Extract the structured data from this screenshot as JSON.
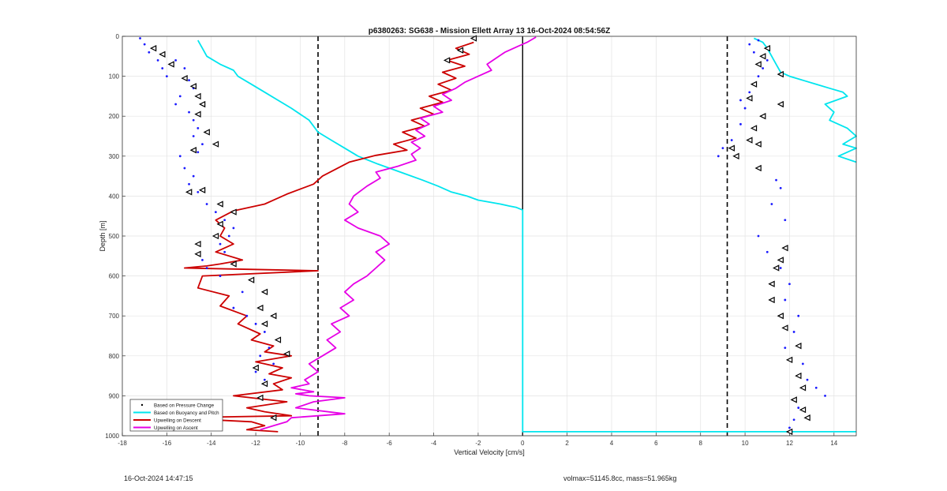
{
  "footer": {
    "timestamp": "16-Oct-2024 14:47:15",
    "volmax_mass": "volmax=51145.8cc, mass=51.965kg"
  },
  "chart_data": {
    "type": "line",
    "title": "p6380263: SG638 - Mission Ellett Array 13 16-Oct-2024 08:54:56Z",
    "xlabel": "Vertical Velocity [cm/s]",
    "ylabel": "Depth [m]",
    "xlim": [
      -18,
      15
    ],
    "ylim": [
      0,
      1000
    ],
    "y_reversed": true,
    "grid": true,
    "legend_position": "bottom-left",
    "xticks": [
      -18,
      -16,
      -14,
      -12,
      -10,
      -8,
      -6,
      -4,
      -2,
      0,
      2,
      4,
      6,
      8,
      10,
      12,
      14
    ],
    "yticks": [
      0,
      100,
      200,
      300,
      400,
      500,
      600,
      700,
      800,
      900,
      1000
    ],
    "reference_lines": {
      "dashed_x": [
        -9.2,
        9.2
      ],
      "solid_x": [
        0
      ]
    },
    "legend": [
      {
        "name": "Based on Pressure Change",
        "color": "#000000",
        "style": "dot"
      },
      {
        "name": "Based on Buoyancy and Pitch",
        "color": "#00e5ee",
        "style": "line"
      },
      {
        "name": "Upwelling on Descent",
        "color": "#cc0000",
        "style": "line"
      },
      {
        "name": "Upwelling on Ascent",
        "color": "#e600e6",
        "style": "line"
      }
    ],
    "series": [
      {
        "name": "Based on Buoyancy and Pitch",
        "color": "#00e5ee",
        "style": "line",
        "x": [
          -14.6,
          -14.4,
          -14.2,
          -13.6,
          -13.0,
          -12.8,
          -12.2,
          -11.6,
          -11.0,
          -10.4,
          -9.6,
          -9.2,
          -8.6,
          -8.0,
          -7.4,
          -6.5,
          -5.5,
          -4.5,
          -3.8,
          -3.2,
          -2.5,
          -2.0,
          -1.5,
          -1.0,
          -0.6,
          -0.3,
          0,
          0,
          0,
          0,
          0,
          15
        ],
        "y": [
          10,
          30,
          50,
          70,
          85,
          100,
          120,
          140,
          160,
          180,
          210,
          240,
          260,
          280,
          300,
          320,
          340,
          360,
          375,
          390,
          400,
          410,
          415,
          420,
          425,
          428,
          435,
          600,
          800,
          950,
          990,
          990
        ]
      },
      {
        "name": "Based on Buoyancy and Pitch (ascent)",
        "color": "#00e5ee",
        "style": "line",
        "x": [
          10.4,
          10.8,
          11.0,
          11.2,
          11.4,
          11.6,
          12.0,
          12.6,
          13.2,
          13.8,
          14.4,
          14.6,
          13.6,
          14.0,
          13.8,
          14.6,
          15.0,
          14.4,
          15.0,
          14.2,
          15.0
        ],
        "y": [
          5,
          15,
          30,
          50,
          70,
          90,
          100,
          110,
          120,
          130,
          140,
          150,
          170,
          190,
          210,
          230,
          250,
          270,
          280,
          300,
          315
        ]
      },
      {
        "name": "Upwelling on Descent",
        "color": "#cc0000",
        "style": "line",
        "x": [
          -2.2,
          -3.0,
          -2.4,
          -3.4,
          -2.6,
          -3.6,
          -3.0,
          -3.8,
          -3.2,
          -4.2,
          -3.6,
          -4.6,
          -4.0,
          -5.0,
          -4.4,
          -5.4,
          -4.8,
          -5.8,
          -5.2,
          -6.6,
          -7.8,
          -9.0,
          -9.4,
          -10.6,
          -11.6,
          -13.0,
          -13.8,
          -13.4,
          -13.6,
          -13.0,
          -13.8,
          -12.6,
          -13.6,
          -14.2,
          -15.2,
          -9.2,
          -14.4,
          -14.6,
          -13.2,
          -13.6,
          -12.4,
          -12.8,
          -11.8,
          -12.2,
          -11.2,
          -11.6,
          -10.4,
          -12.0,
          -10.8,
          -11.4,
          -10.4,
          -11.2,
          -10.8,
          -13.0,
          -10.6,
          -12.4,
          -11.6,
          -10.4,
          -15.8,
          -12.2,
          -11.6,
          -12.4,
          -11.0
        ],
        "y": [
          15,
          30,
          45,
          60,
          75,
          90,
          105,
          120,
          135,
          150,
          165,
          180,
          195,
          210,
          225,
          240,
          255,
          270,
          285,
          298,
          315,
          350,
          370,
          395,
          420,
          437,
          460,
          480,
          500,
          520,
          540,
          560,
          570,
          575,
          580,
          587,
          600,
          630,
          650,
          675,
          700,
          720,
          745,
          760,
          775,
          790,
          800,
          815,
          830,
          845,
          855,
          870,
          885,
          900,
          915,
          930,
          940,
          950,
          955,
          965,
          975,
          985,
          990
        ]
      },
      {
        "name": "Upwelling on Ascent",
        "color": "#e600e6",
        "style": "line",
        "x": [
          0.6,
          0.2,
          -0.2,
          -0.8,
          -1.2,
          -1.6,
          -1.4,
          -2.0,
          -2.6,
          -3.0,
          -3.6,
          -3.2,
          -4.0,
          -3.6,
          -4.6,
          -4.2,
          -4.8,
          -4.4,
          -5.0,
          -4.6,
          -5.0,
          -4.8,
          -5.6,
          -6.6,
          -6.4,
          -7.0,
          -7.6,
          -7.8,
          -7.4,
          -8.0,
          -7.4,
          -6.4,
          -6.0,
          -6.6,
          -6.2,
          -6.6,
          -7.0,
          -7.6,
          -8.0,
          -7.6,
          -8.2,
          -7.8,
          -8.6,
          -8.2,
          -8.8,
          -8.4,
          -9.0,
          -9.6,
          -9.2,
          -9.8,
          -9.6,
          -10.4,
          -9.4,
          -10.2,
          -9.6,
          -8.0,
          -9.4,
          -10.2,
          -8.0,
          -10.4,
          -10.6,
          -11.2,
          -11.8
        ],
        "y": [
          2,
          15,
          25,
          40,
          55,
          70,
          85,
          100,
          115,
          130,
          145,
          160,
          175,
          190,
          205,
          220,
          235,
          250,
          265,
          280,
          295,
          310,
          325,
          340,
          355,
          375,
          400,
          420,
          440,
          460,
          480,
          500,
          520,
          540,
          560,
          580,
          600,
          620,
          640,
          660,
          680,
          700,
          720,
          740,
          760,
          780,
          800,
          820,
          840,
          860,
          870,
          880,
          890,
          895,
          900,
          905,
          915,
          930,
          945,
          955,
          965,
          975,
          985
        ]
      },
      {
        "name": "Based on Pressure Change",
        "color": "#1a1aff",
        "style": "dot",
        "x": [
          -17.2,
          -17.0,
          -16.8,
          -16.4,
          -16.2,
          -16.0,
          -15.6,
          -15.2,
          -15.0,
          -14.8,
          -15.4,
          -15.6,
          -15.0,
          -14.8,
          -14.6,
          -14.8,
          -14.4,
          -14.6,
          -15.4,
          -15.2,
          -14.8,
          -15.0,
          -14.6,
          -14.2,
          -13.8,
          -13.4,
          -13.0,
          -13.2,
          -13.6,
          -13.4,
          -14.4,
          -14.2,
          -13.6,
          -12.6,
          -13.0,
          -12.4,
          -12.0,
          -11.6,
          -11.0,
          -11.4,
          -11.8,
          -11.2,
          -12.0,
          -11.6,
          8.8,
          9.0,
          9.4,
          9.8,
          10.0,
          9.8,
          10.2,
          10.4,
          10.6,
          10.8,
          11.0,
          10.4,
          10.2,
          10.6,
          11.4,
          11.6,
          11.2,
          11.8,
          10.6,
          11.0,
          11.6,
          12.0,
          11.8,
          12.4,
          12.2,
          11.8,
          12.6,
          12.8,
          13.2,
          13.6,
          12.4,
          12.2,
          12.0
        ],
        "y": [
          5,
          20,
          40,
          60,
          80,
          100,
          60,
          80,
          110,
          130,
          150,
          170,
          190,
          210,
          230,
          250,
          270,
          290,
          300,
          330,
          350,
          370,
          390,
          420,
          440,
          460,
          480,
          500,
          520,
          540,
          560,
          580,
          600,
          640,
          680,
          700,
          720,
          740,
          760,
          780,
          800,
          820,
          840,
          860,
          300,
          280,
          260,
          220,
          180,
          160,
          140,
          120,
          100,
          80,
          60,
          40,
          20,
          10,
          360,
          380,
          420,
          460,
          500,
          540,
          580,
          620,
          660,
          700,
          740,
          780,
          820,
          860,
          880,
          900,
          930,
          960,
          980
        ]
      }
    ],
    "markers": {
      "name": "Based on Pressure Change (triangles)",
      "color": "#000000",
      "style": "triangle",
      "x": [
        -16.6,
        -16.2,
        -15.8,
        -15.2,
        -14.8,
        -14.6,
        -14.4,
        -14.6,
        -14.2,
        -13.8,
        -14.8,
        -15.0,
        -14.4,
        -13.6,
        -13.0,
        -13.6,
        -13.8,
        -14.6,
        -14.6,
        -13.0,
        -12.2,
        -11.6,
        -11.8,
        -11.2,
        -11.6,
        -11.0,
        -10.6,
        -12.0,
        -11.6,
        -11.8,
        -11.2,
        -2.2,
        -2.8,
        -3.4,
        11.0,
        10.8,
        10.6,
        11.6,
        10.4,
        10.2,
        11.6,
        10.8,
        10.4,
        10.2,
        9.4,
        9.6,
        10.6,
        10.6,
        11.8,
        11.6,
        11.4,
        11.2,
        11.2,
        11.6,
        11.8,
        12.4,
        12.0,
        12.4,
        12.6,
        12.2,
        12.6,
        12.8,
        12.0
      ],
      "y": [
        30,
        45,
        70,
        105,
        125,
        150,
        170,
        195,
        240,
        270,
        285,
        390,
        385,
        420,
        440,
        470,
        500,
        520,
        545,
        570,
        610,
        640,
        680,
        700,
        720,
        760,
        795,
        830,
        870,
        905,
        955,
        5,
        35,
        60,
        30,
        50,
        70,
        95,
        120,
        155,
        170,
        200,
        230,
        260,
        280,
        300,
        270,
        330,
        530,
        560,
        580,
        620,
        660,
        700,
        730,
        775,
        810,
        850,
        880,
        910,
        935,
        955,
        990
      ]
    }
  }
}
